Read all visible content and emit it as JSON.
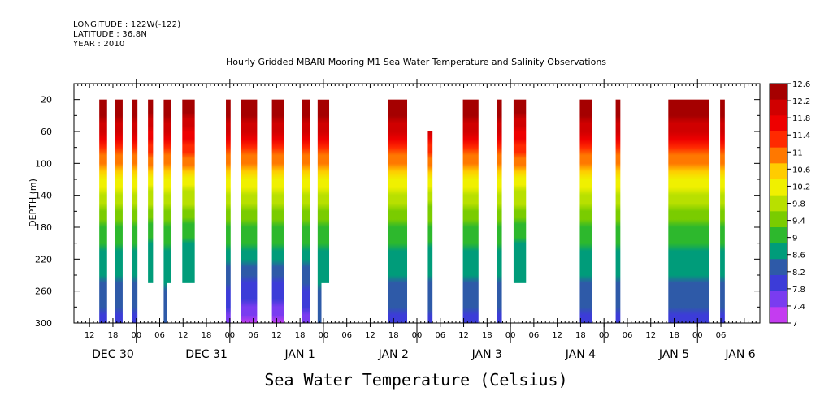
{
  "header": {
    "longitude": "LONGITUDE : 122W(-122)",
    "latitude": "LATITUDE : 36.8N",
    "year": "YEAR : 2010"
  },
  "chart_data": {
    "type": "heatmap",
    "title": "Hourly Gridded MBARI Mooring M1 Sea Water Temperature and Salinity Observations",
    "xlabel": "Sea Water Temperature (Celsius)",
    "ylabel": "DEPTH (m)",
    "ylim": [
      300,
      0
    ],
    "y_ticks": [
      20,
      60,
      100,
      140,
      180,
      220,
      260,
      300
    ],
    "x_unit": "hours since Dec 29 12:00",
    "x_range": [
      -4,
      172
    ],
    "x_tick_labels": [
      {
        "h": 0,
        "label": "12"
      },
      {
        "h": 6,
        "label": "18"
      },
      {
        "h": 12,
        "label": "00"
      },
      {
        "h": 18,
        "label": "06"
      },
      {
        "h": 24,
        "label": "12"
      },
      {
        "h": 30,
        "label": "18"
      },
      {
        "h": 36,
        "label": "00"
      },
      {
        "h": 42,
        "label": "06"
      },
      {
        "h": 48,
        "label": "12"
      },
      {
        "h": 54,
        "label": "18"
      },
      {
        "h": 60,
        "label": "00"
      },
      {
        "h": 66,
        "label": "06"
      },
      {
        "h": 72,
        "label": "12"
      },
      {
        "h": 78,
        "label": "18"
      },
      {
        "h": 84,
        "label": "00"
      },
      {
        "h": 90,
        "label": "06"
      },
      {
        "h": 96,
        "label": "12"
      },
      {
        "h": 102,
        "label": "18"
      },
      {
        "h": 108,
        "label": "00"
      },
      {
        "h": 114,
        "label": "06"
      },
      {
        "h": 120,
        "label": "12"
      },
      {
        "h": 126,
        "label": "18"
      },
      {
        "h": 132,
        "label": "00"
      },
      {
        "h": 138,
        "label": "06"
      },
      {
        "h": 144,
        "label": "12"
      },
      {
        "h": 150,
        "label": "18"
      },
      {
        "h": 156,
        "label": "00"
      },
      {
        "h": 162,
        "label": "06"
      }
    ],
    "day_labels": [
      {
        "h": 6,
        "label": "DEC 30"
      },
      {
        "h": 30,
        "label": "DEC 31"
      },
      {
        "h": 54,
        "label": "JAN  1"
      },
      {
        "h": 78,
        "label": "JAN  2"
      },
      {
        "h": 102,
        "label": "JAN  3"
      },
      {
        "h": 126,
        "label": "JAN  4"
      },
      {
        "h": 150,
        "label": "JAN  5"
      },
      {
        "h": 167,
        "label": "JAN  6"
      }
    ],
    "colorbar": {
      "labels": [
        "12.6",
        "12.2",
        "11.8",
        "11.4",
        "11",
        "10.6",
        "10.2",
        "9.8",
        "9.4",
        "9",
        "8.6",
        "8.2",
        "7.8",
        "7.4",
        "7"
      ],
      "levels": [
        12.6,
        12.2,
        11.8,
        11.4,
        11.0,
        10.6,
        10.2,
        9.8,
        9.4,
        9.0,
        8.6,
        8.2,
        7.8,
        7.4,
        7.0
      ],
      "colors": [
        "#a50000",
        "#d00000",
        "#ee0000",
        "#ff2a00",
        "#ff7800",
        "#ffcc00",
        "#f0f000",
        "#b8e000",
        "#7acc00",
        "#2db82d",
        "#009c7a",
        "#2e5aa8",
        "#3c3cd8",
        "#7a3cf0",
        "#c43cf0"
      ]
    },
    "segments": [
      {
        "start": 2.5,
        "end": 4.5,
        "ztop": 20,
        "zbot": 300,
        "tmin": 7.9
      },
      {
        "start": 6.5,
        "end": 8.5,
        "ztop": 20,
        "zbot": 300,
        "tmin": 7.9
      },
      {
        "start": 11.0,
        "end": 12.3,
        "ztop": 20,
        "zbot": 300,
        "tmin": 7.9
      },
      {
        "start": 15.0,
        "end": 16.3,
        "ztop": 20,
        "zbot": 250,
        "tmin": 8.1
      },
      {
        "start": 19.0,
        "end": 21.0,
        "ztop": 20,
        "zbot": 250,
        "tmin": 8.1,
        "tail_zbot": 300,
        "tail_width": 0.9
      },
      {
        "start": 23.8,
        "end": 27.0,
        "ztop": 20,
        "zbot": 250,
        "tmin": 8.1
      },
      {
        "start": 35.0,
        "end": 36.2,
        "ztop": 20,
        "zbot": 300,
        "tmin": 7.3
      },
      {
        "start": 38.8,
        "end": 43.0,
        "ztop": 20,
        "zbot": 300,
        "tmin": 7.1
      },
      {
        "start": 46.8,
        "end": 49.8,
        "ztop": 20,
        "zbot": 300,
        "tmin": 7.1
      },
      {
        "start": 54.5,
        "end": 56.5,
        "ztop": 20,
        "zbot": 300,
        "tmin": 7.3
      },
      {
        "start": 58.5,
        "end": 61.5,
        "ztop": 20,
        "zbot": 250,
        "tmin": 8.1,
        "tail_zbot": 300,
        "tail_width": 1.0
      },
      {
        "start": 76.5,
        "end": 81.5,
        "ztop": 20,
        "zbot": 300,
        "tmin": 7.9
      },
      {
        "start": 86.8,
        "end": 88.0,
        "ztop": 60,
        "zbot": 300,
        "tmin": 7.9
      },
      {
        "start": 95.8,
        "end": 99.8,
        "ztop": 20,
        "zbot": 300,
        "tmin": 7.8
      },
      {
        "start": 104.5,
        "end": 105.8,
        "ztop": 20,
        "zbot": 300,
        "tmin": 7.9
      },
      {
        "start": 108.8,
        "end": 112.0,
        "ztop": 20,
        "zbot": 250,
        "tmin": 8.1
      },
      {
        "start": 125.8,
        "end": 129.0,
        "ztop": 20,
        "zbot": 300,
        "tmin": 7.9
      },
      {
        "start": 135.0,
        "end": 136.2,
        "ztop": 20,
        "zbot": 300,
        "tmin": 7.9
      },
      {
        "start": 148.5,
        "end": 159.0,
        "ztop": 20,
        "zbot": 300,
        "tmin": 7.8
      },
      {
        "start": 161.8,
        "end": 163.0,
        "ztop": 20,
        "zbot": 300,
        "tmin": 7.9
      }
    ]
  }
}
